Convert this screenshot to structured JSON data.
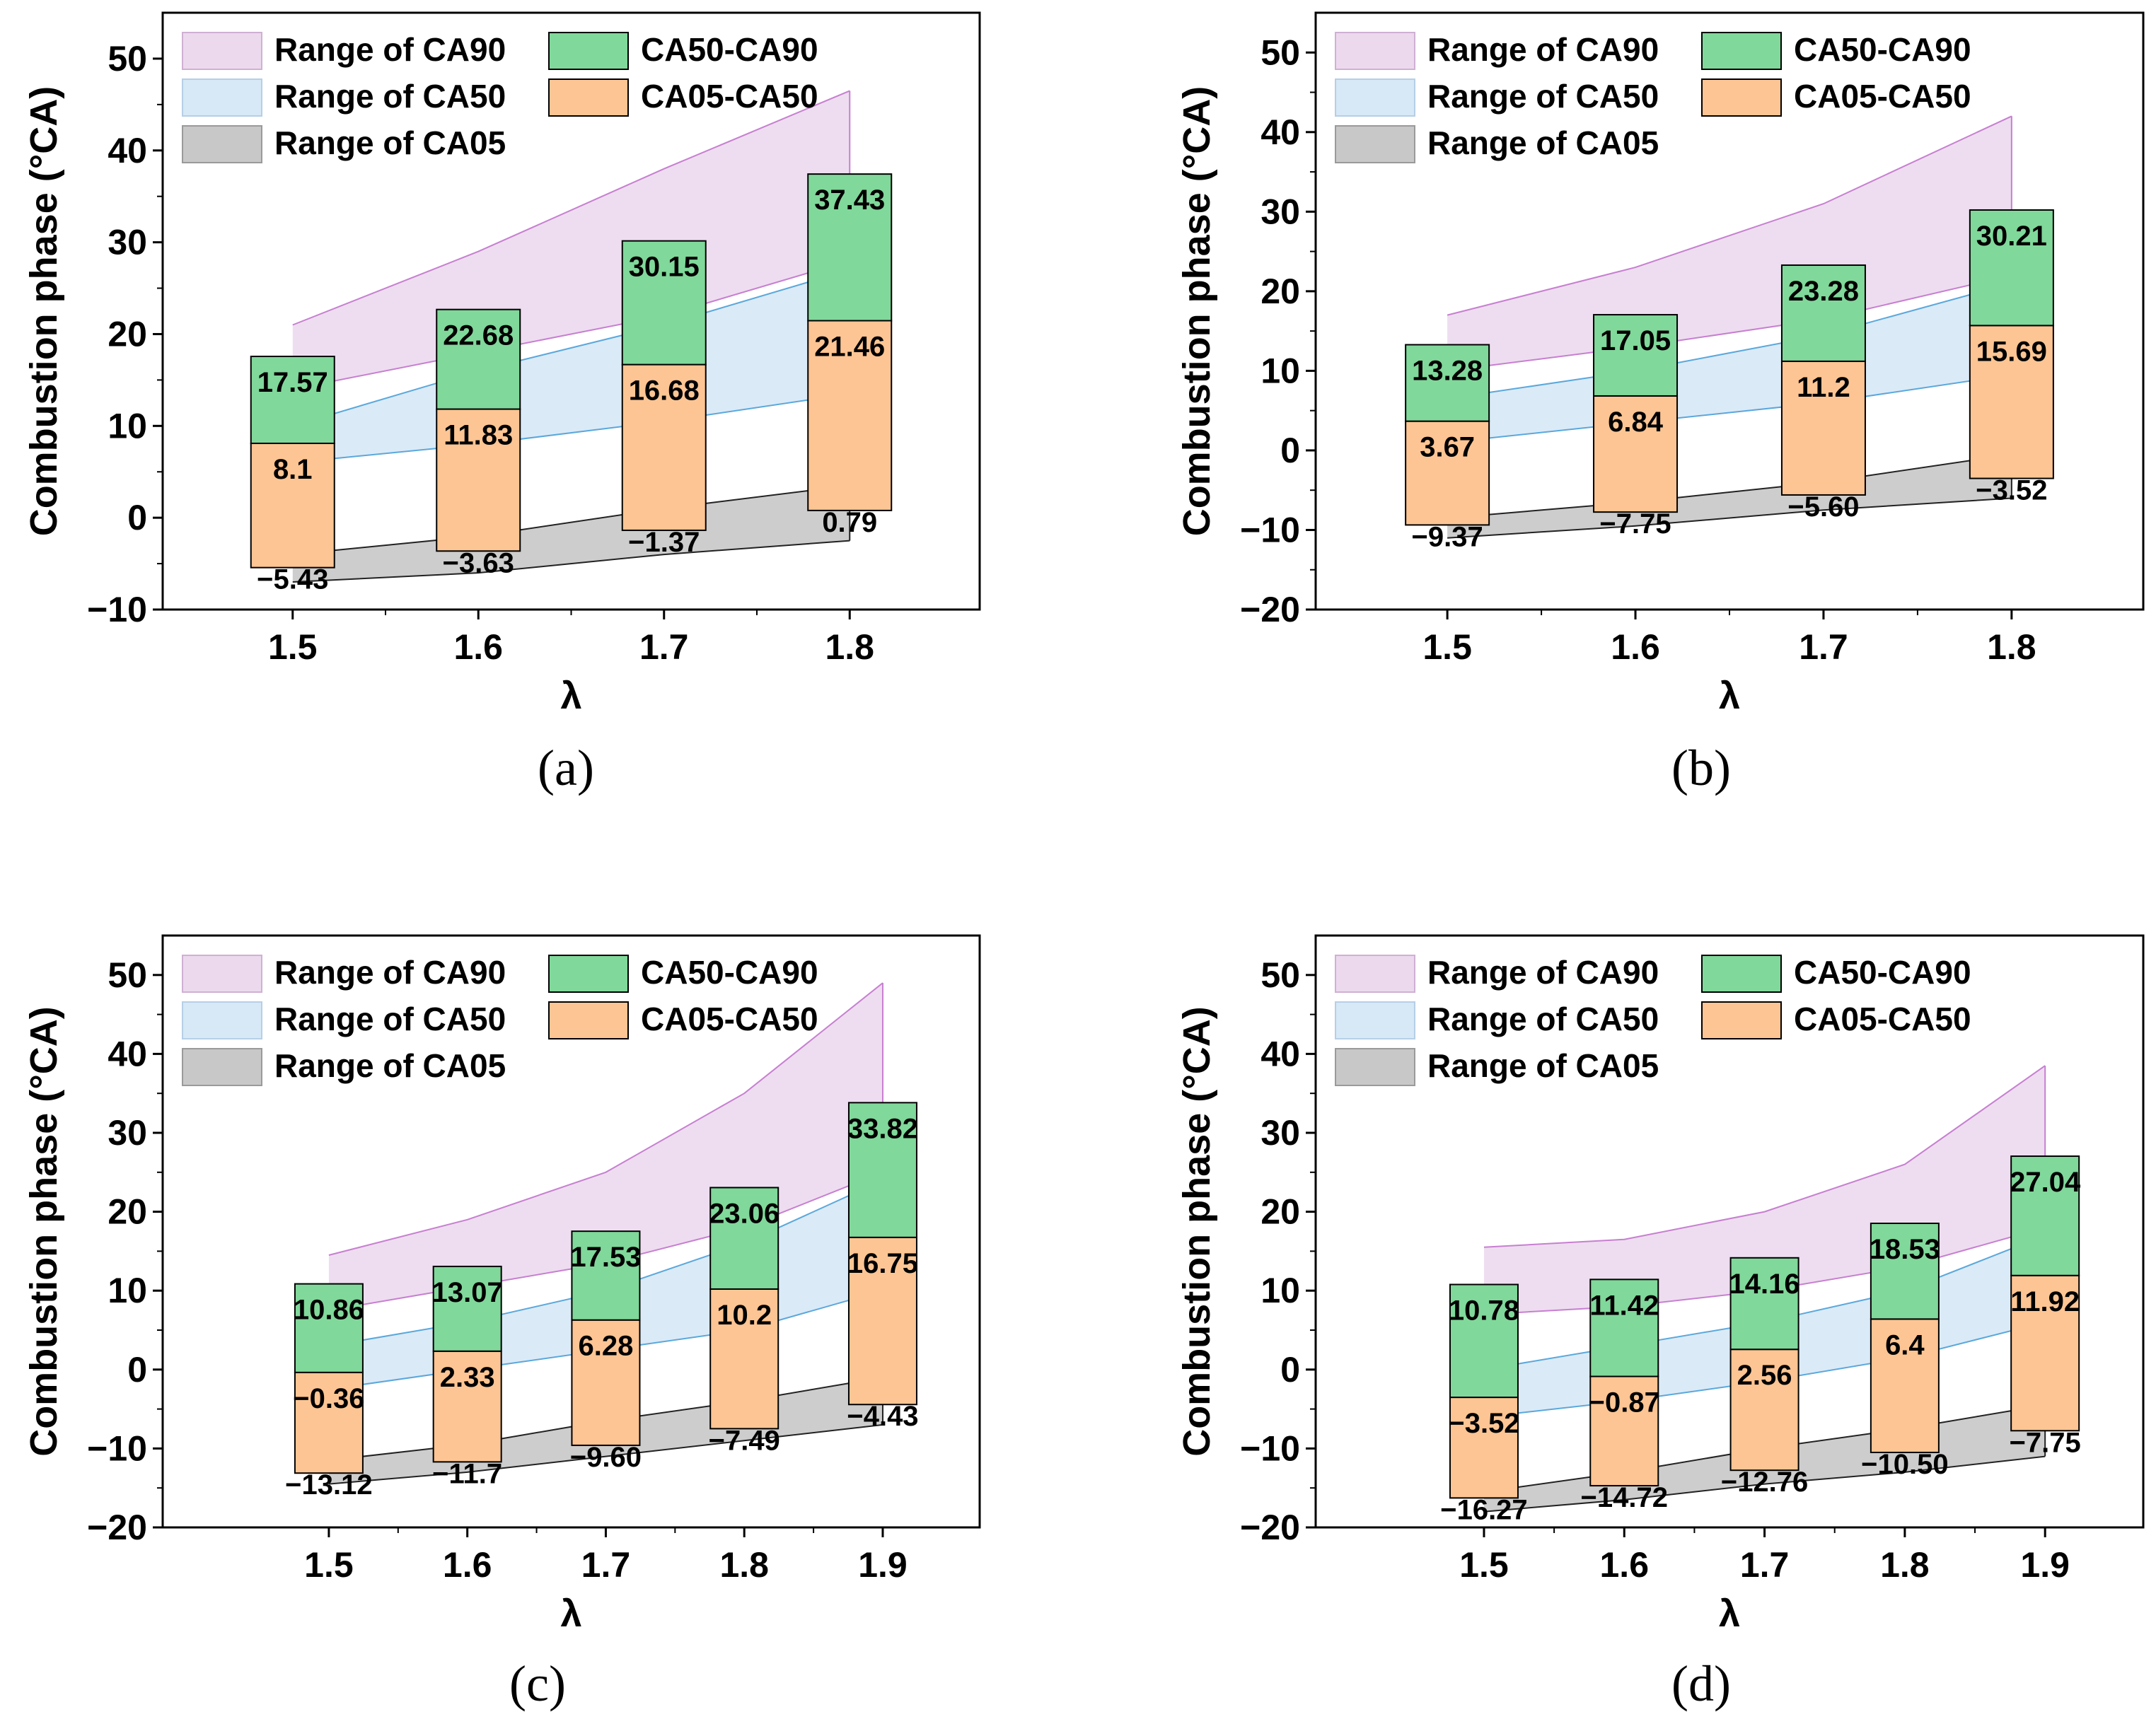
{
  "colors": {
    "ca90_band": "#ecd9ee",
    "ca90_line": "#c77fd1",
    "ca50_band": "#d7e8f6",
    "ca50_line": "#5aa8dc",
    "ca05_band": "#c8c8c8",
    "ca05_line": "#222222",
    "bar_ca50_ca90": "#80d89a",
    "bar_ca05_ca50": "#fdc593",
    "axis": "#000000"
  },
  "legend_labels": {
    "range_ca90": "Range of CA90",
    "range_ca50": "Range of CA50",
    "range_ca05": "Range of CA05",
    "ca50_ca90": "CA50-CA90",
    "ca05_ca50": "CA05-CA50"
  },
  "chart_data": [
    {
      "panel_label": "(a)",
      "type": "bar",
      "ylabel": "Combustion phase (°CA)",
      "xlabel": "λ",
      "xlim": [
        1.43,
        1.87
      ],
      "ylim": [
        -10,
        55
      ],
      "x": [
        1.5,
        1.6,
        1.7,
        1.8
      ],
      "x_tick_labels": [
        "1.5",
        "1.6",
        "1.7",
        "1.8"
      ],
      "y_ticks": [
        -10,
        0,
        10,
        20,
        30,
        40,
        50
      ],
      "y_tick_labels": [
        "−10",
        "0",
        "10",
        "20",
        "30",
        "40",
        "50"
      ],
      "ca05": [
        -5.43,
        -3.63,
        -1.37,
        0.79
      ],
      "ca50": [
        8.1,
        11.83,
        16.68,
        21.46
      ],
      "ca90": [
        17.57,
        22.68,
        30.15,
        37.43
      ],
      "ca05_labels": [
        "−5.43",
        "−3.63",
        "−1.37",
        "0.79"
      ],
      "ca50_labels": [
        "8.1",
        "11.83",
        "16.68",
        "21.46"
      ],
      "ca90_labels": [
        "17.57",
        "22.68",
        "30.15",
        "37.43"
      ],
      "range_ca90": {
        "lower": [
          14,
          18,
          22,
          28
        ],
        "upper": [
          21,
          29,
          38,
          46.5
        ]
      },
      "range_ca50": {
        "lower": [
          6,
          8,
          10.5,
          13.5
        ],
        "upper": [
          10,
          16,
          21,
          27
        ]
      },
      "range_ca05": {
        "lower": [
          -7,
          -6,
          -4,
          -2.5
        ],
        "upper": [
          -4,
          -2,
          1,
          3.5
        ]
      }
    },
    {
      "panel_label": "(b)",
      "type": "bar",
      "ylabel": "Combustion phase (°CA)",
      "xlabel": "λ",
      "xlim": [
        1.43,
        1.87
      ],
      "ylim": [
        -20,
        55
      ],
      "x": [
        1.5,
        1.6,
        1.7,
        1.8
      ],
      "x_tick_labels": [
        "1.5",
        "1.6",
        "1.7",
        "1.8"
      ],
      "y_ticks": [
        -20,
        -10,
        0,
        10,
        20,
        30,
        40,
        50
      ],
      "y_tick_labels": [
        "−20",
        "−10",
        "0",
        "10",
        "20",
        "30",
        "40",
        "50"
      ],
      "ca05": [
        -9.37,
        -7.75,
        -5.6,
        -3.52
      ],
      "ca50": [
        3.67,
        6.84,
        11.2,
        15.69
      ],
      "ca90": [
        13.28,
        17.05,
        23.28,
        30.21
      ],
      "ca05_labels": [
        "−9.37",
        "−7.75",
        "−5.60",
        "−3.52"
      ],
      "ca50_labels": [
        "3.67",
        "6.84",
        "11.2",
        "15.69"
      ],
      "ca90_labels": [
        "13.28",
        "17.05",
        "23.28",
        "30.21"
      ],
      "range_ca90": {
        "lower": [
          10,
          13,
          16.5,
          22
        ],
        "upper": [
          17,
          23,
          31,
          42
        ]
      },
      "range_ca50": {
        "lower": [
          1,
          3.5,
          6,
          9.5
        ],
        "upper": [
          6.5,
          10,
          14.5,
          21
        ]
      },
      "range_ca05": {
        "lower": [
          -11,
          -9.5,
          -7.5,
          -6
        ],
        "upper": [
          -8.5,
          -6.5,
          -4,
          -0.5
        ]
      }
    },
    {
      "panel_label": "(c)",
      "type": "bar",
      "ylabel": "Combustion phase (°CA)",
      "xlabel": "λ",
      "xlim": [
        1.38,
        1.97
      ],
      "ylim": [
        -20,
        55
      ],
      "x": [
        1.5,
        1.6,
        1.7,
        1.8,
        1.9
      ],
      "x_tick_labels": [
        "1.5",
        "1.6",
        "1.7",
        "1.8",
        "1.9"
      ],
      "y_ticks": [
        -20,
        -10,
        0,
        10,
        20,
        30,
        40,
        50
      ],
      "y_tick_labels": [
        "−20",
        "−10",
        "0",
        "10",
        "20",
        "30",
        "40",
        "50"
      ],
      "ca05": [
        -13.12,
        -11.7,
        -9.6,
        -7.49,
        -4.43
      ],
      "ca50": [
        -0.36,
        2.33,
        6.28,
        10.2,
        16.75
      ],
      "ca90": [
        10.86,
        13.07,
        17.53,
        23.06,
        33.82
      ],
      "ca05_labels": [
        "−13.12",
        "−11.7",
        "−9.60",
        "−7.49",
        "−4.43"
      ],
      "ca50_labels": [
        "−0.36",
        "2.33",
        "6.28",
        "10.2",
        "16.75"
      ],
      "ca90_labels": [
        "10.86",
        "13.07",
        "17.53",
        "23.06",
        "33.82"
      ],
      "range_ca90": {
        "lower": [
          7.5,
          10.5,
          13.5,
          18,
          25
        ],
        "upper": [
          14.5,
          19,
          25,
          35,
          49
        ]
      },
      "range_ca50": {
        "lower": [
          -2.5,
          0,
          2.5,
          5,
          10
        ],
        "upper": [
          3,
          6,
          10,
          16,
          24
        ]
      },
      "range_ca05": {
        "lower": [
          -14.5,
          -13,
          -11,
          -9,
          -7
        ],
        "upper": [
          -11.5,
          -9.5,
          -6.5,
          -4,
          -1
        ]
      }
    },
    {
      "panel_label": "(d)",
      "type": "bar",
      "ylabel": "Combustion phase (°CA)",
      "xlabel": "λ",
      "xlim": [
        1.38,
        1.97
      ],
      "ylim": [
        -20,
        55
      ],
      "x": [
        1.5,
        1.6,
        1.7,
        1.8,
        1.9
      ],
      "x_tick_labels": [
        "1.5",
        "1.6",
        "1.7",
        "1.8",
        "1.9"
      ],
      "y_ticks": [
        -20,
        -10,
        0,
        10,
        20,
        30,
        40,
        50
      ],
      "y_tick_labels": [
        "−20",
        "−10",
        "0",
        "10",
        "20",
        "30",
        "40",
        "50"
      ],
      "ca05": [
        -16.27,
        -14.72,
        -12.76,
        -10.5,
        -7.75
      ],
      "ca50": [
        -3.52,
        -0.87,
        2.56,
        6.4,
        11.92
      ],
      "ca90": [
        10.78,
        11.42,
        14.16,
        18.53,
        27.04
      ],
      "ca05_labels": [
        "−16.27",
        "−14.72",
        "−12.76",
        "−10.50",
        "−7.75"
      ],
      "ca50_labels": [
        "−3.52",
        "−0.87",
        "2.56",
        "6.4",
        "11.92"
      ],
      "ca90_labels": [
        "10.78",
        "11.42",
        "14.16",
        "18.53",
        "27.04"
      ],
      "range_ca90": {
        "lower": [
          7,
          8,
          10,
          13,
          18
        ],
        "upper": [
          15.5,
          16.5,
          20,
          26,
          38.5
        ]
      },
      "range_ca50": {
        "lower": [
          -6,
          -4,
          -1.5,
          1.5,
          6
        ],
        "upper": [
          0,
          3,
          6,
          10,
          17
        ]
      },
      "range_ca05": {
        "lower": [
          -18,
          -16.5,
          -14.5,
          -13,
          -11
        ],
        "upper": [
          -15.5,
          -13,
          -10,
          -7.5,
          -4.5
        ]
      }
    }
  ]
}
